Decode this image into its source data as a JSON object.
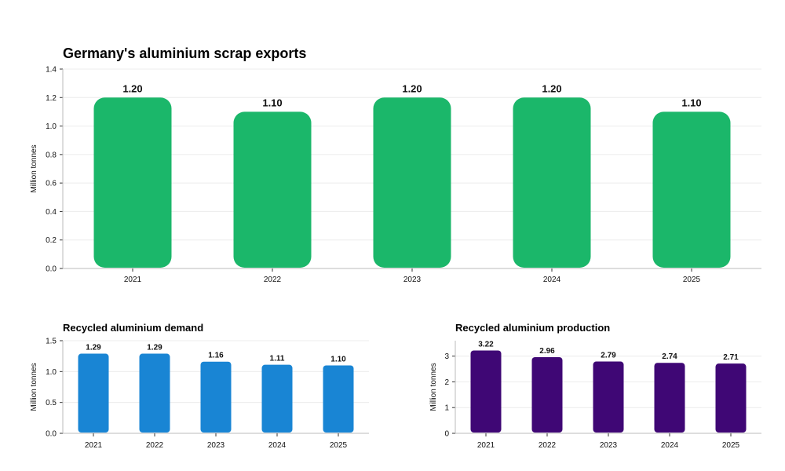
{
  "chart_data": [
    {
      "type": "bar",
      "title": "Germany's aluminium scrap exports",
      "xlabel": "",
      "ylabel": "Million tonnes",
      "categories": [
        "2021",
        "2022",
        "2023",
        "2024",
        "2025"
      ],
      "values": [
        1.2,
        1.1,
        1.2,
        1.2,
        1.1
      ],
      "value_labels": [
        "1.20",
        "1.10",
        "1.20",
        "1.20",
        "1.10"
      ],
      "ylim": [
        0,
        1.4
      ],
      "yticks": [
        "0.0",
        "0.2",
        "0.4",
        "0.6",
        "0.8",
        "1.0",
        "1.2",
        "1.4"
      ],
      "color": "#1bb76a",
      "grid": true,
      "legend": "none"
    },
    {
      "type": "bar",
      "title": "Recycled aluminium demand",
      "xlabel": "",
      "ylabel": "Million tonnes",
      "categories": [
        "2021",
        "2022",
        "2023",
        "2024",
        "2025"
      ],
      "values": [
        1.29,
        1.29,
        1.16,
        1.11,
        1.1
      ],
      "value_labels": [
        "1.29",
        "1.29",
        "1.16",
        "1.11",
        "1.10"
      ],
      "ylim": [
        0,
        1.5
      ],
      "yticks": [
        "0.0",
        "0.5",
        "1.0",
        "1.5"
      ],
      "color": "#1985d4",
      "grid": true,
      "legend": "none"
    },
    {
      "type": "bar",
      "title": "Recycled aluminium production",
      "xlabel": "",
      "ylabel": "Million tonnes",
      "categories": [
        "2021",
        "2022",
        "2023",
        "2024",
        "2025"
      ],
      "values": [
        3.22,
        2.96,
        2.79,
        2.74,
        2.71
      ],
      "value_labels": [
        "3.22",
        "2.96",
        "2.79",
        "2.74",
        "2.71"
      ],
      "ylim": [
        0,
        3.6
      ],
      "yticks": [
        "0",
        "1",
        "2",
        "3"
      ],
      "color": "#3f0775",
      "grid": true,
      "legend": "none"
    }
  ]
}
